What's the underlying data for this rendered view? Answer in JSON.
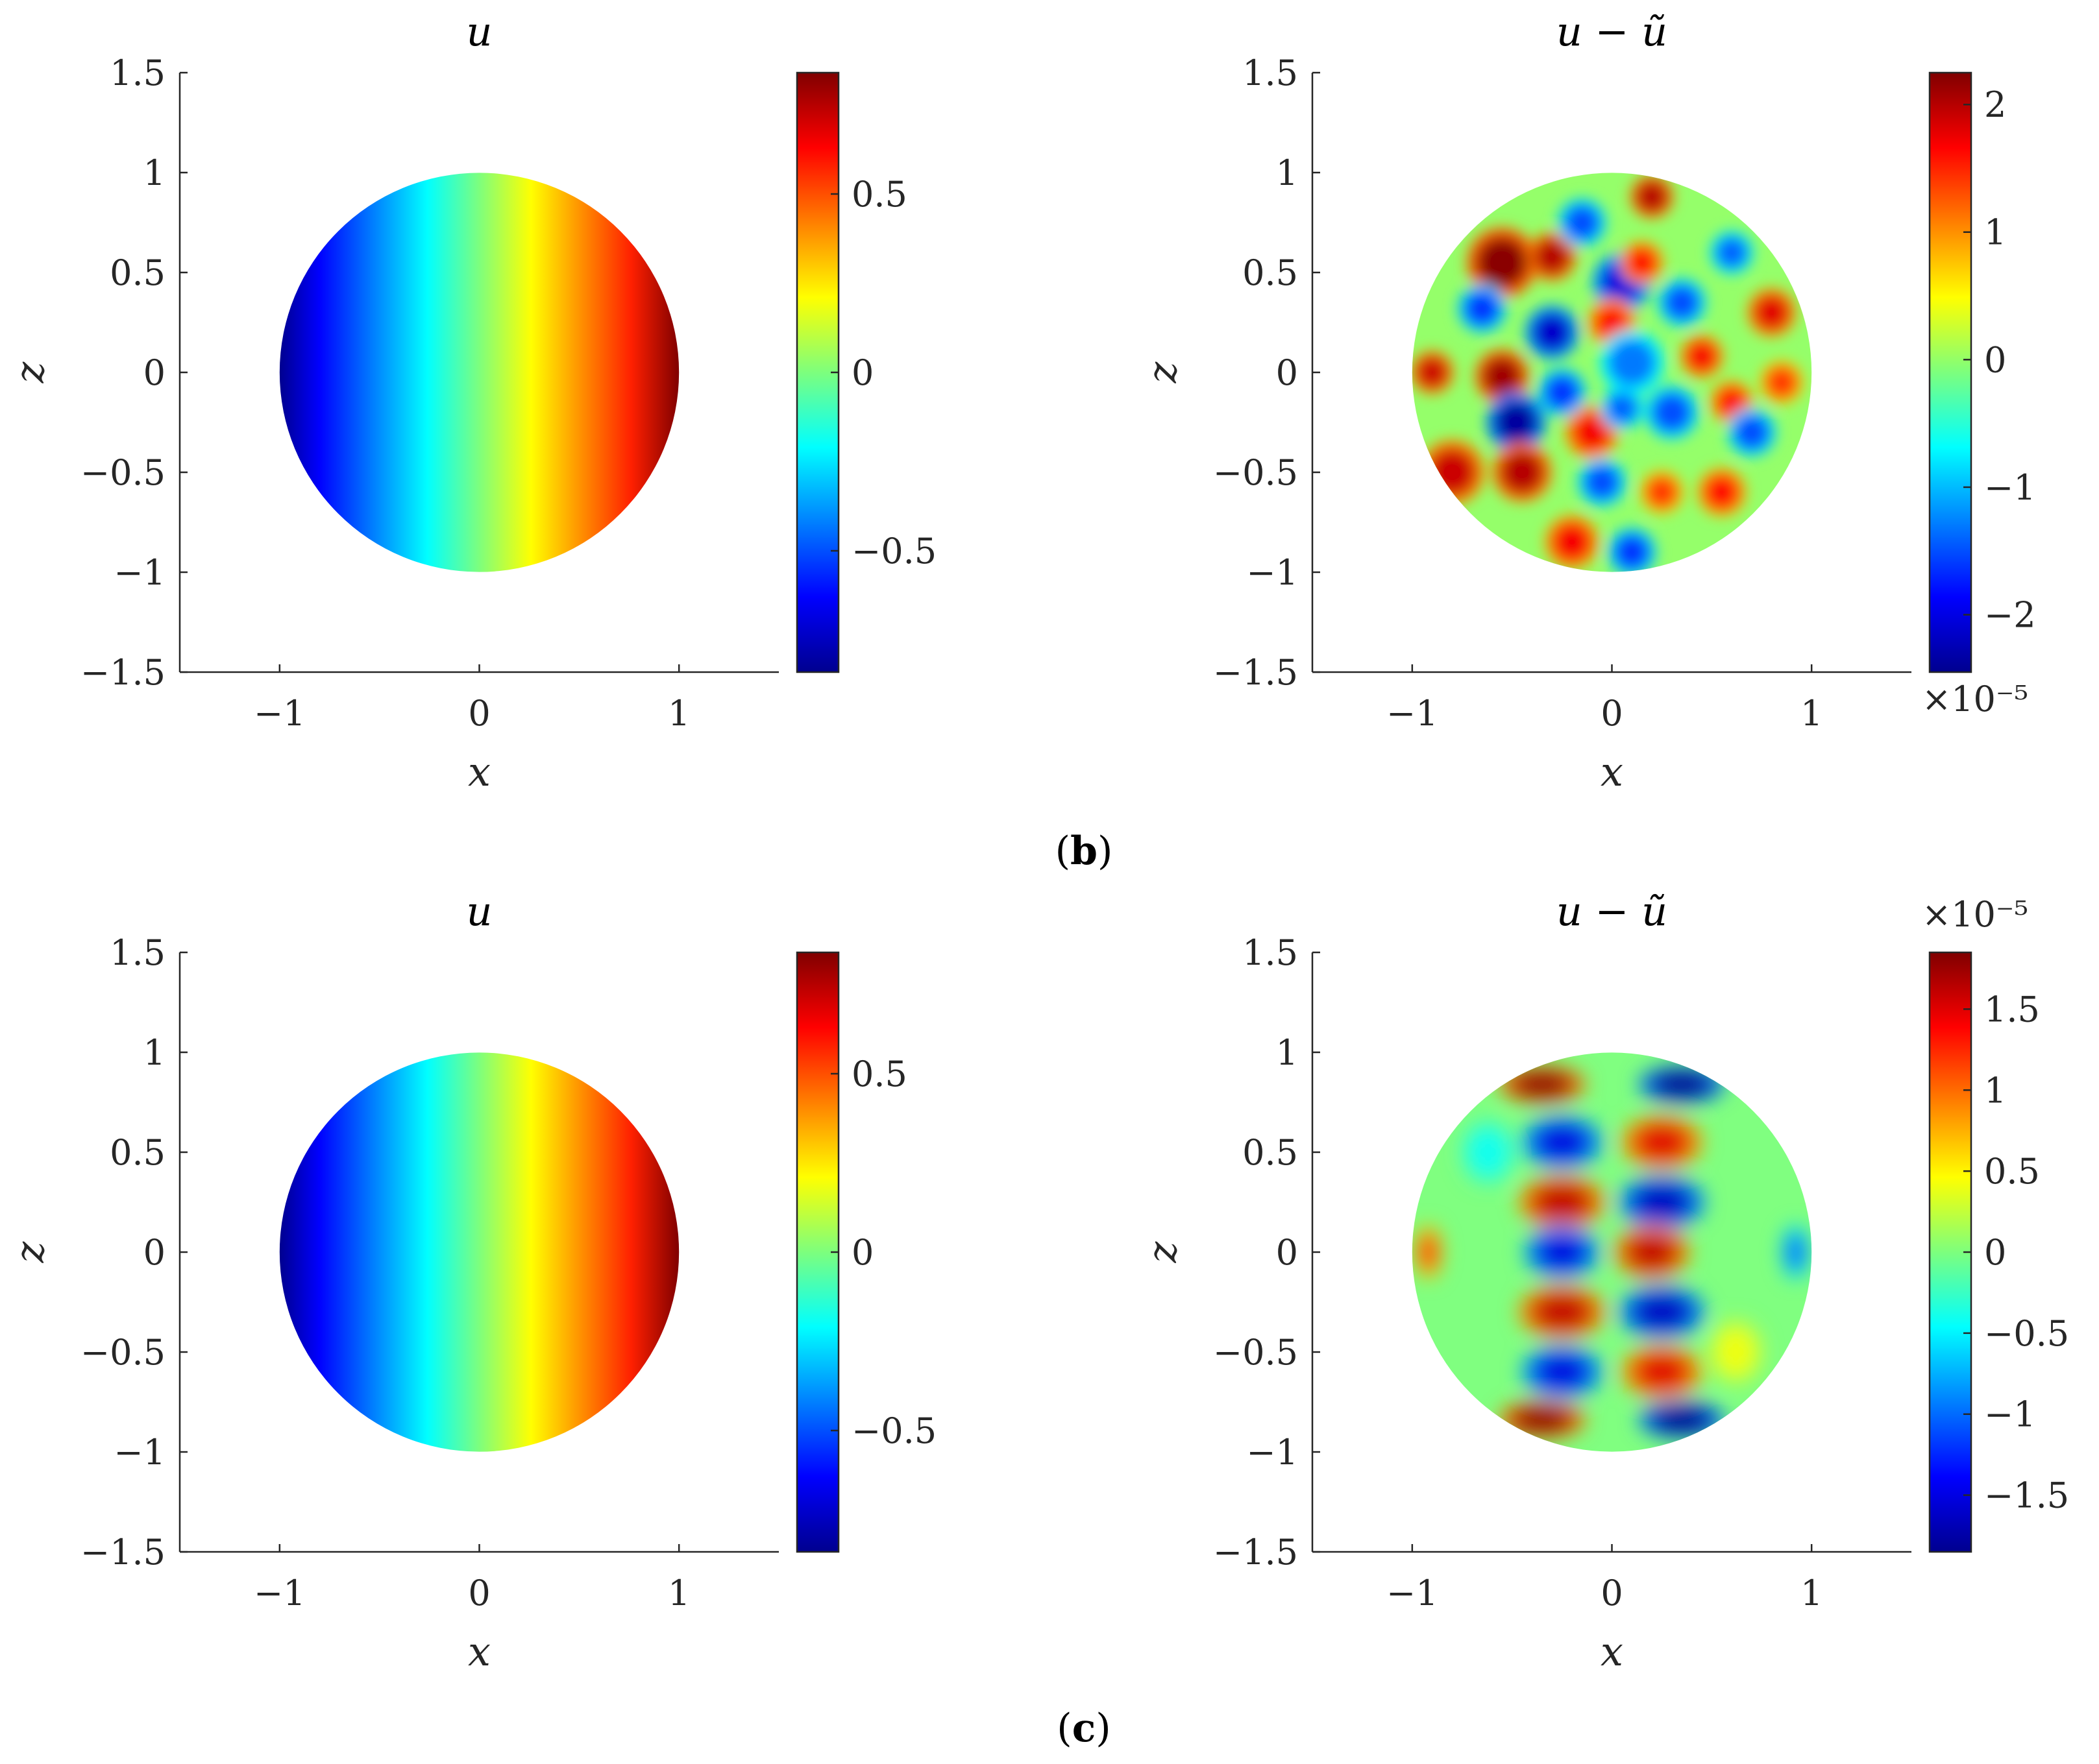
{
  "captions": [
    "b",
    "c"
  ],
  "colormap": "jet",
  "chart_data": [
    {
      "type": "heatmap",
      "panel": "b-left",
      "title": "u",
      "xlabel": "x",
      "ylabel": "z",
      "xlim": [
        -1.5,
        1.5
      ],
      "ylim": [
        -1.5,
        1.5
      ],
      "xticks": [
        "−1",
        "0",
        "1"
      ],
      "xtick_values": [
        -1,
        0,
        1
      ],
      "yticks": [
        "1.5",
        "1",
        "0.5",
        "0",
        "−0.5",
        "−1",
        "−1.5"
      ],
      "ytick_values": [
        1.5,
        1,
        0.5,
        0,
        -0.5,
        -1,
        -1.5
      ],
      "domain": "unit disk",
      "field": "linear-in-x",
      "clim": [
        -0.84,
        0.84
      ],
      "colorbar_ticks": [
        "0.5",
        "0",
        "−0.5"
      ],
      "colorbar_tick_values": [
        0.5,
        0,
        -0.5
      ],
      "colorbar_exponent": ""
    },
    {
      "type": "heatmap",
      "panel": "b-right",
      "title": "u − ũ",
      "xlabel": "x",
      "ylabel": "z",
      "xlim": [
        -1.5,
        1.5
      ],
      "ylim": [
        -1.5,
        1.5
      ],
      "xticks": [
        "−1",
        "0",
        "1"
      ],
      "xtick_values": [
        -1,
        0,
        1
      ],
      "yticks": [
        "1.5",
        "1",
        "0.5",
        "0",
        "−0.5",
        "−1",
        "−1.5"
      ],
      "ytick_values": [
        1.5,
        1,
        0.5,
        0,
        -0.5,
        -1,
        -1.5
      ],
      "domain": "unit disk",
      "field": "irregular-blobs",
      "clim": [
        -2.45,
        2.25
      ],
      "colorbar_ticks": [
        "2",
        "1",
        "0",
        "−1",
        "−2"
      ],
      "colorbar_tick_values": [
        2,
        1,
        0,
        -1,
        -2
      ],
      "colorbar_exponent": "×10⁻⁵",
      "colorbar_exponent_position": "bottom"
    },
    {
      "type": "heatmap",
      "panel": "c-left",
      "title": "u",
      "xlabel": "x",
      "ylabel": "z",
      "xlim": [
        -1.5,
        1.5
      ],
      "ylim": [
        -1.5,
        1.5
      ],
      "xticks": [
        "−1",
        "0",
        "1"
      ],
      "xtick_values": [
        -1,
        0,
        1
      ],
      "yticks": [
        "1.5",
        "1",
        "0.5",
        "0",
        "−0.5",
        "−1",
        "−1.5"
      ],
      "ytick_values": [
        1.5,
        1,
        0.5,
        0,
        -0.5,
        -1,
        -1.5
      ],
      "domain": "unit disk",
      "field": "linear-in-x",
      "clim": [
        -0.84,
        0.84
      ],
      "colorbar_ticks": [
        "0.5",
        "0",
        "−0.5"
      ],
      "colorbar_tick_values": [
        0.5,
        0,
        -0.5
      ],
      "colorbar_exponent": ""
    },
    {
      "type": "heatmap",
      "panel": "c-right",
      "title": "u − ũ",
      "xlabel": "x",
      "ylabel": "z",
      "xlim": [
        -1.5,
        1.5
      ],
      "ylim": [
        -1.5,
        1.5
      ],
      "xticks": [
        "−1",
        "0",
        "1"
      ],
      "xtick_values": [
        -1,
        0,
        1
      ],
      "yticks": [
        "1.5",
        "1",
        "0.5",
        "0",
        "−0.5",
        "−1",
        "−1.5"
      ],
      "ytick_values": [
        1.5,
        1,
        0.5,
        0,
        -0.5,
        -1,
        -1.5
      ],
      "domain": "unit disk",
      "field": "checkerboard-lobes",
      "clim": [
        -1.85,
        1.85
      ],
      "colorbar_ticks": [
        "1.5",
        "1",
        "0.5",
        "0",
        "−0.5",
        "−1",
        "−1.5"
      ],
      "colorbar_tick_values": [
        1.5,
        1,
        0.5,
        0,
        -0.5,
        -1,
        -1.5
      ],
      "colorbar_exponent": "×10⁻⁵",
      "colorbar_exponent_position": "top"
    }
  ]
}
